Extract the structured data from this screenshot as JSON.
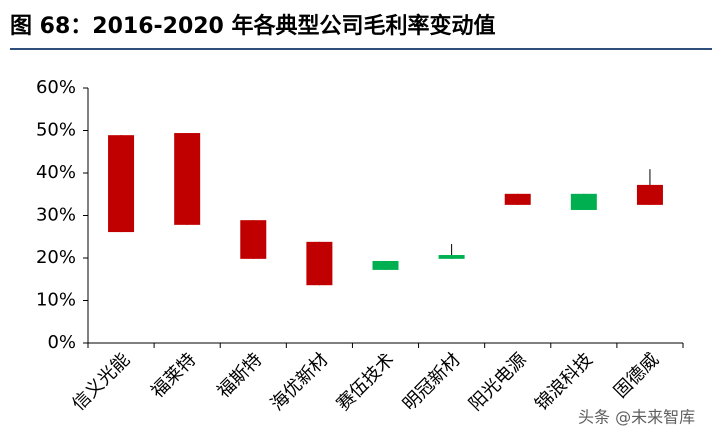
{
  "chart_data": {
    "type": "candlestick",
    "title": "图 68：2016-2020 年各典型公司毛利率变动值",
    "categories": [
      "信义光能",
      "福莱特",
      "福斯特",
      "海优新材",
      "赛伍技术",
      "明冠新材",
      "阳光电源",
      "锦浪科技",
      "固德威"
    ],
    "open": [
      26.1,
      27.8,
      19.8,
      13.6,
      19.3,
      20.7,
      32.5,
      35.1,
      32.5
    ],
    "close": [
      48.9,
      49.4,
      28.9,
      23.8,
      17.2,
      19.8,
      35.1,
      31.3,
      37.2
    ],
    "high": [
      48.9,
      49.4,
      28.9,
      23.8,
      19.3,
      23.3,
      35.1,
      35.1,
      40.9
    ],
    "low": [
      26.1,
      27.8,
      19.8,
      13.6,
      17.2,
      19.8,
      32.5,
      31.3,
      32.5
    ],
    "up_color": "#c00000",
    "down_color": "#00b050",
    "ylim": [
      0,
      60
    ],
    "yticks": [
      {
        "value": 0,
        "label": "0%"
      },
      {
        "value": 10,
        "label": "10%"
      },
      {
        "value": 20,
        "label": "20%"
      },
      {
        "value": 30,
        "label": "30%"
      },
      {
        "value": 40,
        "label": "40%"
      },
      {
        "value": 50,
        "label": "50%"
      },
      {
        "value": 60,
        "label": "60%"
      }
    ],
    "watermark": "头条 @未来智库"
  }
}
